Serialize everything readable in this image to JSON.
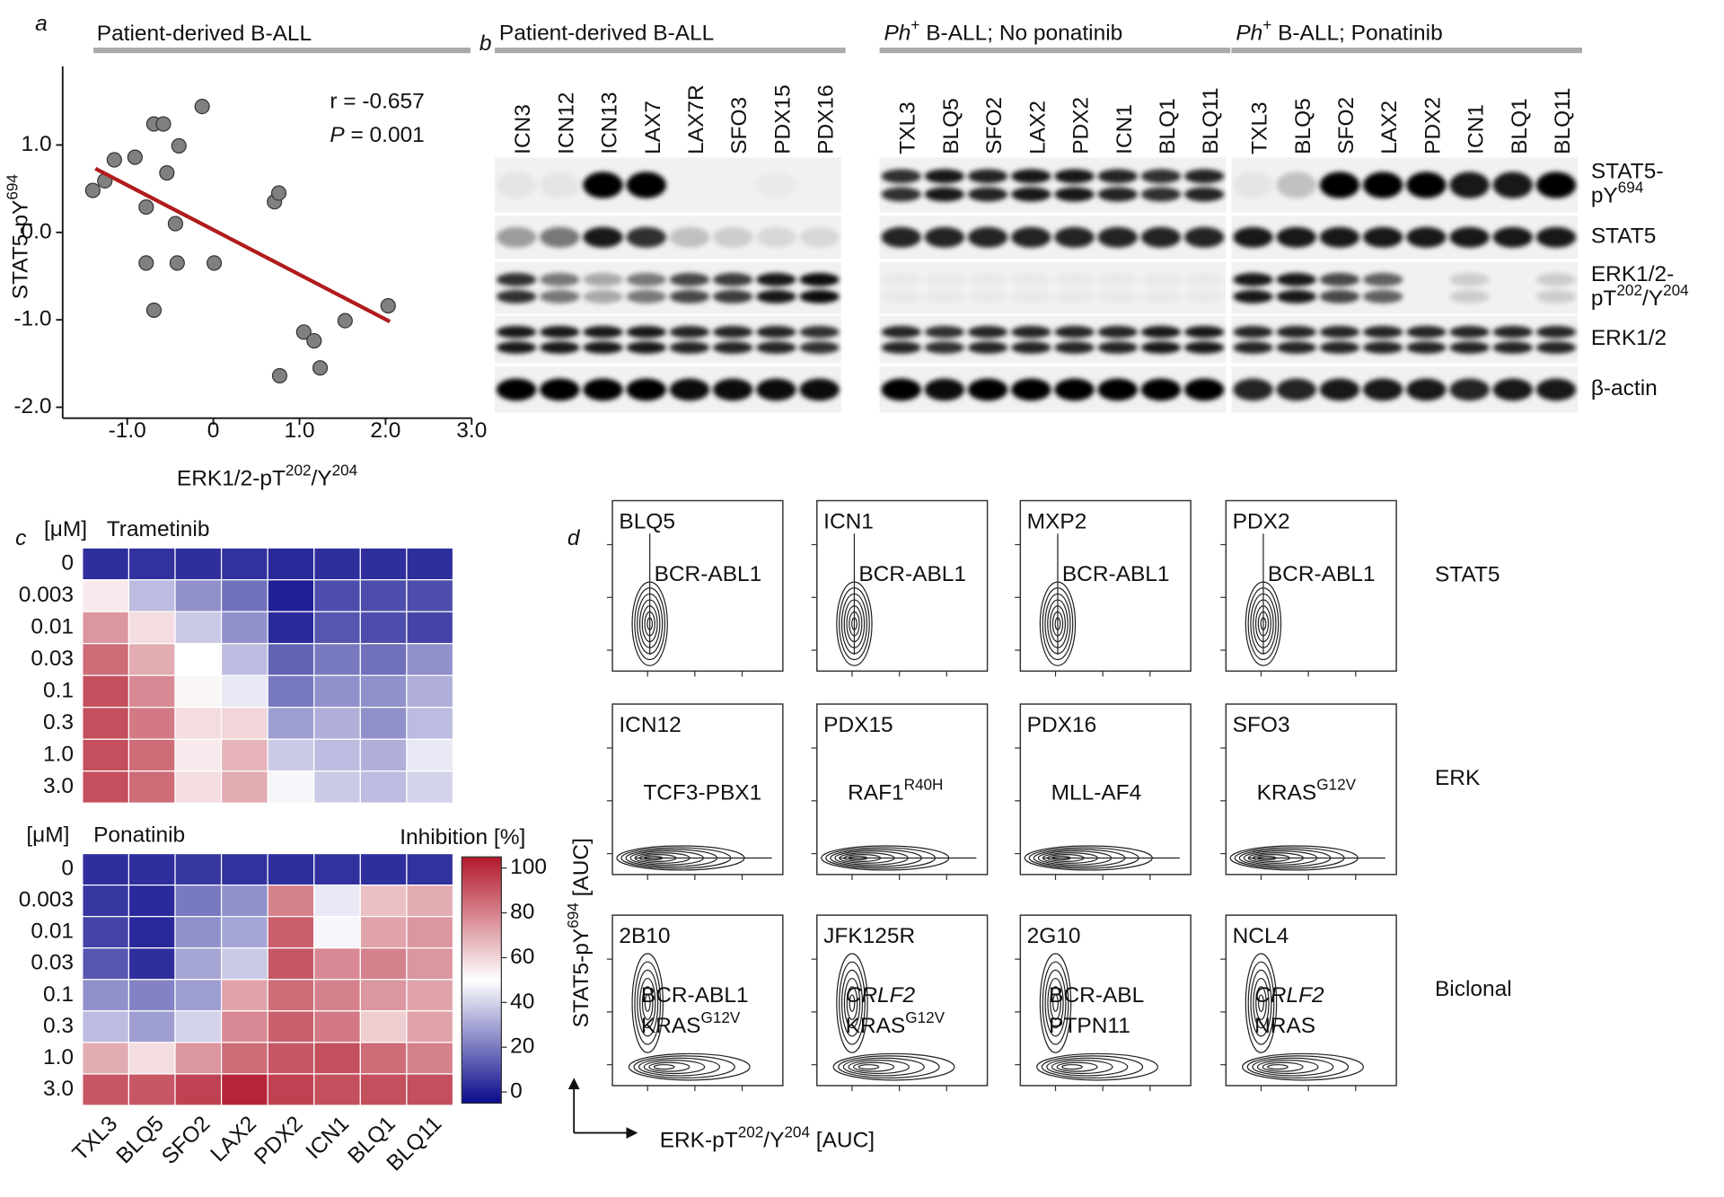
{
  "panel_labels": {
    "a": "a",
    "b": "b",
    "c": "c",
    "d": "d"
  },
  "chart_data": [
    {
      "type": "scatter",
      "header": "Patient-derived B-ALL",
      "x": [
        -1.4,
        -1.26,
        -1.15,
        -0.91,
        -0.69,
        -0.58,
        -0.4,
        -0.54,
        -0.78,
        -0.44,
        -0.78,
        -0.42,
        -0.69,
        -0.13,
        0.01,
        0.71,
        0.76,
        1.05,
        1.17,
        1.24,
        1.53,
        2.03,
        0.77
      ],
      "y": [
        0.48,
        0.59,
        0.83,
        0.86,
        1.24,
        1.24,
        0.99,
        0.68,
        0.29,
        0.1,
        -0.35,
        -0.35,
        -0.89,
        1.44,
        -0.35,
        0.35,
        0.45,
        -1.14,
        -1.24,
        -1.55,
        -1.01,
        -0.84,
        -1.64
      ],
      "color": "#808080",
      "fit": {
        "x": [
          -1.37,
          2.05
        ],
        "y": [
          0.73,
          -1.02
        ],
        "color": "#b01c1c"
      },
      "xlim": [
        -1.75,
        3.0
      ],
      "ylim": [
        -2.1,
        1.9
      ],
      "xticks": [
        {
          "value": -1,
          "label": "-1.0"
        },
        0,
        {
          "value": 1,
          "label": "1.0"
        },
        {
          "value": 2,
          "label": "2.0"
        },
        {
          "value": 3,
          "label": "3.0"
        }
      ],
      "yticks": [
        {
          "value": -2,
          "label": "-2.0"
        },
        {
          "value": -1,
          "label": "-1.0"
        },
        {
          "value": 0,
          "label": "0.0"
        },
        {
          "value": 1,
          "label": "1.0"
        }
      ],
      "xlabel": [
        "ERK1/2-pT",
        {
          "sup": "202"
        },
        "/Y",
        {
          "sup": "204"
        }
      ],
      "ylabel": [
        "STAT5-pY",
        {
          "sup": "694"
        }
      ],
      "annotations": [
        [
          "r = -0.657"
        ],
        [
          {
            "em": "P"
          },
          " = 0.001"
        ]
      ]
    },
    {
      "type": "heatmap",
      "unit": "[μM]",
      "drug": "Trametinib",
      "drug_color": "#a01818",
      "rows": [
        "0",
        "0.003",
        "0.01",
        "0.03",
        "0.1",
        "0.3",
        "1.0",
        "3.0"
      ],
      "values": [
        [
          3,
          4,
          3,
          4,
          2,
          3,
          3,
          3
        ],
        [
          55,
          35,
          25,
          18,
          0,
          10,
          10,
          10
        ],
        [
          75,
          58,
          38,
          25,
          2,
          12,
          10,
          8
        ],
        [
          85,
          70,
          50,
          35,
          15,
          20,
          18,
          25
        ],
        [
          92,
          78,
          52,
          45,
          20,
          25,
          25,
          32
        ],
        [
          92,
          82,
          58,
          60,
          28,
          32,
          25,
          35
        ],
        [
          92,
          85,
          55,
          68,
          38,
          35,
          32,
          45
        ],
        [
          92,
          85,
          58,
          70,
          48,
          38,
          35,
          40
        ]
      ],
      "zlim": [
        -5,
        105
      ],
      "colors": [
        "#0a0a8c",
        "#ffffff",
        "#b2182b"
      ]
    },
    {
      "type": "heatmap",
      "unit": "[μM]",
      "drug": "Ponatinib",
      "drug_color": "#1e7b1e",
      "rows": [
        "0",
        "0.003",
        "0.01",
        "0.03",
        "0.1",
        "0.3",
        "1.0",
        "3.0"
      ],
      "columns": [
        "TXL3",
        "BLQ5",
        "SFO2",
        "LAX2",
        "PDX2",
        "ICN1",
        "BLQ1",
        "BLQ11"
      ],
      "values": [
        [
          3,
          3,
          5,
          4,
          3,
          4,
          3,
          4
        ],
        [
          5,
          2,
          20,
          25,
          80,
          45,
          65,
          70
        ],
        [
          8,
          2,
          25,
          30,
          88,
          48,
          72,
          75
        ],
        [
          12,
          3,
          30,
          38,
          90,
          78,
          80,
          75
        ],
        [
          25,
          22,
          28,
          72,
          85,
          80,
          75,
          72
        ],
        [
          35,
          28,
          40,
          78,
          88,
          82,
          62,
          72
        ],
        [
          70,
          58,
          75,
          85,
          90,
          92,
          85,
          80
        ],
        [
          90,
          90,
          95,
          102,
          95,
          92,
          92,
          92
        ]
      ],
      "zlim": [
        -5,
        105
      ],
      "colors": [
        "#0a0a8c",
        "#ffffff",
        "#b2182b"
      ],
      "colorbar": {
        "title": "Inhibition [%]",
        "ticks": [
          0,
          20,
          40,
          60,
          80,
          100
        ]
      }
    }
  ],
  "blots": {
    "groups": [
      {
        "title": [
          "Patient-derived B-ALL"
        ],
        "lanes": [
          "ICN3",
          "ICN12",
          "ICN13",
          "LAX7",
          "LAX7R",
          "SFO3",
          "PDX15",
          "PDX16"
        ]
      },
      {
        "title": [
          {
            "em": "Ph"
          },
          {
            "sup": "+"
          },
          " B-ALL; No ponatinib"
        ],
        "lanes": [
          "TXL3",
          "BLQ5",
          "SFO2",
          "LAX2",
          "PDX2",
          "ICN1",
          "BLQ1",
          "BLQ11"
        ]
      },
      {
        "title": [
          {
            "em": "Ph"
          },
          {
            "sup": "+"
          },
          " B-ALL; Ponatinib"
        ],
        "lanes": [
          "TXL3",
          "BLQ5",
          "SFO2",
          "LAX2",
          "PDX2",
          "ICN1",
          "BLQ1",
          "BLQ11"
        ]
      }
    ],
    "rows": [
      [
        [
          "STAT5-"
        ],
        [
          "pY",
          {
            "sup": "694"
          }
        ]
      ],
      [
        [
          "STAT5"
        ]
      ],
      [
        [
          "ERK1/2-"
        ],
        [
          "pT",
          {
            "sup": "202"
          },
          "/Y",
          {
            "sup": "204"
          }
        ]
      ],
      [
        [
          "ERK1/2"
        ]
      ],
      [
        [
          "β-actin"
        ]
      ]
    ]
  },
  "flow": {
    "ylabel": [
      "STAT5-pY",
      {
        "sup": "694"
      },
      " [AUC]"
    ],
    "xlabel": [
      "ERK-pT",
      {
        "sup": "202"
      },
      "/Y",
      {
        "sup": "204"
      },
      " [AUC]"
    ],
    "rows": [
      {
        "label": "STAT5",
        "color": "#1e7b1e",
        "plots": [
          {
            "sample": "BLQ5",
            "lines": [
              {
                "color": "#1e7b1e",
                "text": [
                  "BCR-ABL1"
                ]
              }
            ]
          },
          {
            "sample": "ICN1",
            "lines": [
              {
                "color": "#1e7b1e",
                "text": [
                  "BCR-ABL1"
                ]
              }
            ]
          },
          {
            "sample": "MXP2",
            "lines": [
              {
                "color": "#1e7b1e",
                "text": [
                  "BCR-ABL1"
                ]
              }
            ]
          },
          {
            "sample": "PDX2",
            "lines": [
              {
                "color": "#1e7b1e",
                "text": [
                  "BCR-ABL1"
                ]
              }
            ]
          }
        ]
      },
      {
        "label": "ERK",
        "color": "#b01c1c",
        "plots": [
          {
            "sample": "ICN12",
            "lines": [
              {
                "color": "#b01c1c",
                "text": [
                  "TCF3-PBX1"
                ]
              }
            ]
          },
          {
            "sample": "PDX15",
            "lines": [
              {
                "color": "#b01c1c",
                "text": [
                  "RAF1",
                  {
                    "sup": "R40H"
                  }
                ]
              }
            ]
          },
          {
            "sample": "PDX16",
            "lines": [
              {
                "color": "#b01c1c",
                "text": [
                  "MLL-AF4"
                ]
              }
            ]
          },
          {
            "sample": "SFO3",
            "lines": [
              {
                "color": "#b01c1c",
                "text": [
                  "KRAS",
                  {
                    "sup": "G12V"
                  }
                ]
              }
            ]
          }
        ]
      },
      {
        "label": "Biclonal",
        "color": "#000000",
        "plots": [
          {
            "sample": "2B10",
            "lines": [
              {
                "color": "#1e7b1e",
                "text": [
                  "BCR-ABL1"
                ]
              },
              {
                "color": "#b01c1c",
                "text": [
                  "KRAS",
                  {
                    "sup": "G12V"
                  }
                ]
              }
            ]
          },
          {
            "sample": "JFK125R",
            "lines": [
              {
                "color": "#1e7b1e",
                "text": [
                  {
                    "em": "CRLF2"
                  }
                ]
              },
              {
                "color": "#b01c1c",
                "text": [
                  "KRAS",
                  {
                    "sup": "G12V"
                  }
                ]
              }
            ]
          },
          {
            "sample": "2G10",
            "lines": [
              {
                "color": "#1e7b1e",
                "text": [
                  "BCR-ABL"
                ]
              },
              {
                "color": "#b01c1c",
                "text": [
                  "PTPN11"
                ]
              }
            ]
          },
          {
            "sample": "NCL4",
            "lines": [
              {
                "color": "#1e7b1e",
                "text": [
                  {
                    "em": "CRLF2"
                  }
                ]
              },
              {
                "color": "#b01c1c",
                "text": [
                  "NRAS"
                ]
              }
            ]
          }
        ]
      }
    ]
  }
}
